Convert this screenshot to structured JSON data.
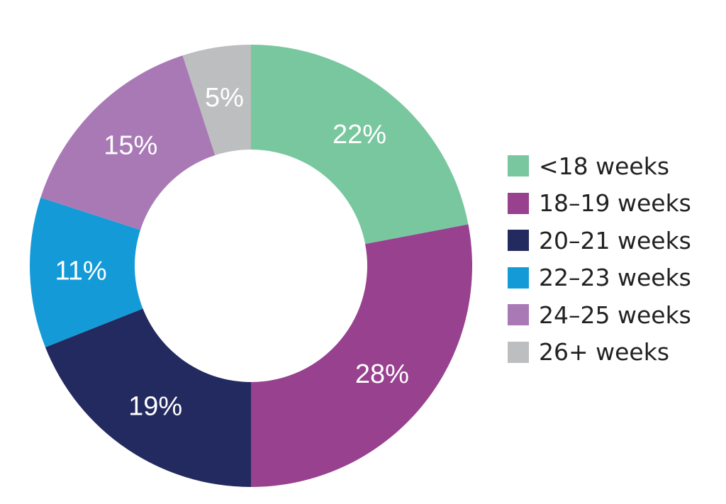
{
  "chart_data": {
    "type": "pie",
    "donut": true,
    "categories": [
      "<18 weeks",
      "18–19 weeks",
      "20–21 weeks",
      "22–23 weeks",
      "24–25 weeks",
      "26+ weeks"
    ],
    "values": [
      22,
      28,
      19,
      11,
      15,
      5
    ],
    "labels": [
      "22%",
      "28%",
      "19%",
      "11%",
      "15%",
      "5%"
    ],
    "colors": [
      "#79c79e",
      "#97418f",
      "#232a60",
      "#149bd7",
      "#a979b6",
      "#bcbec0"
    ],
    "start": "12 o'clock",
    "direction": "clockwise",
    "legend_position": "right"
  }
}
